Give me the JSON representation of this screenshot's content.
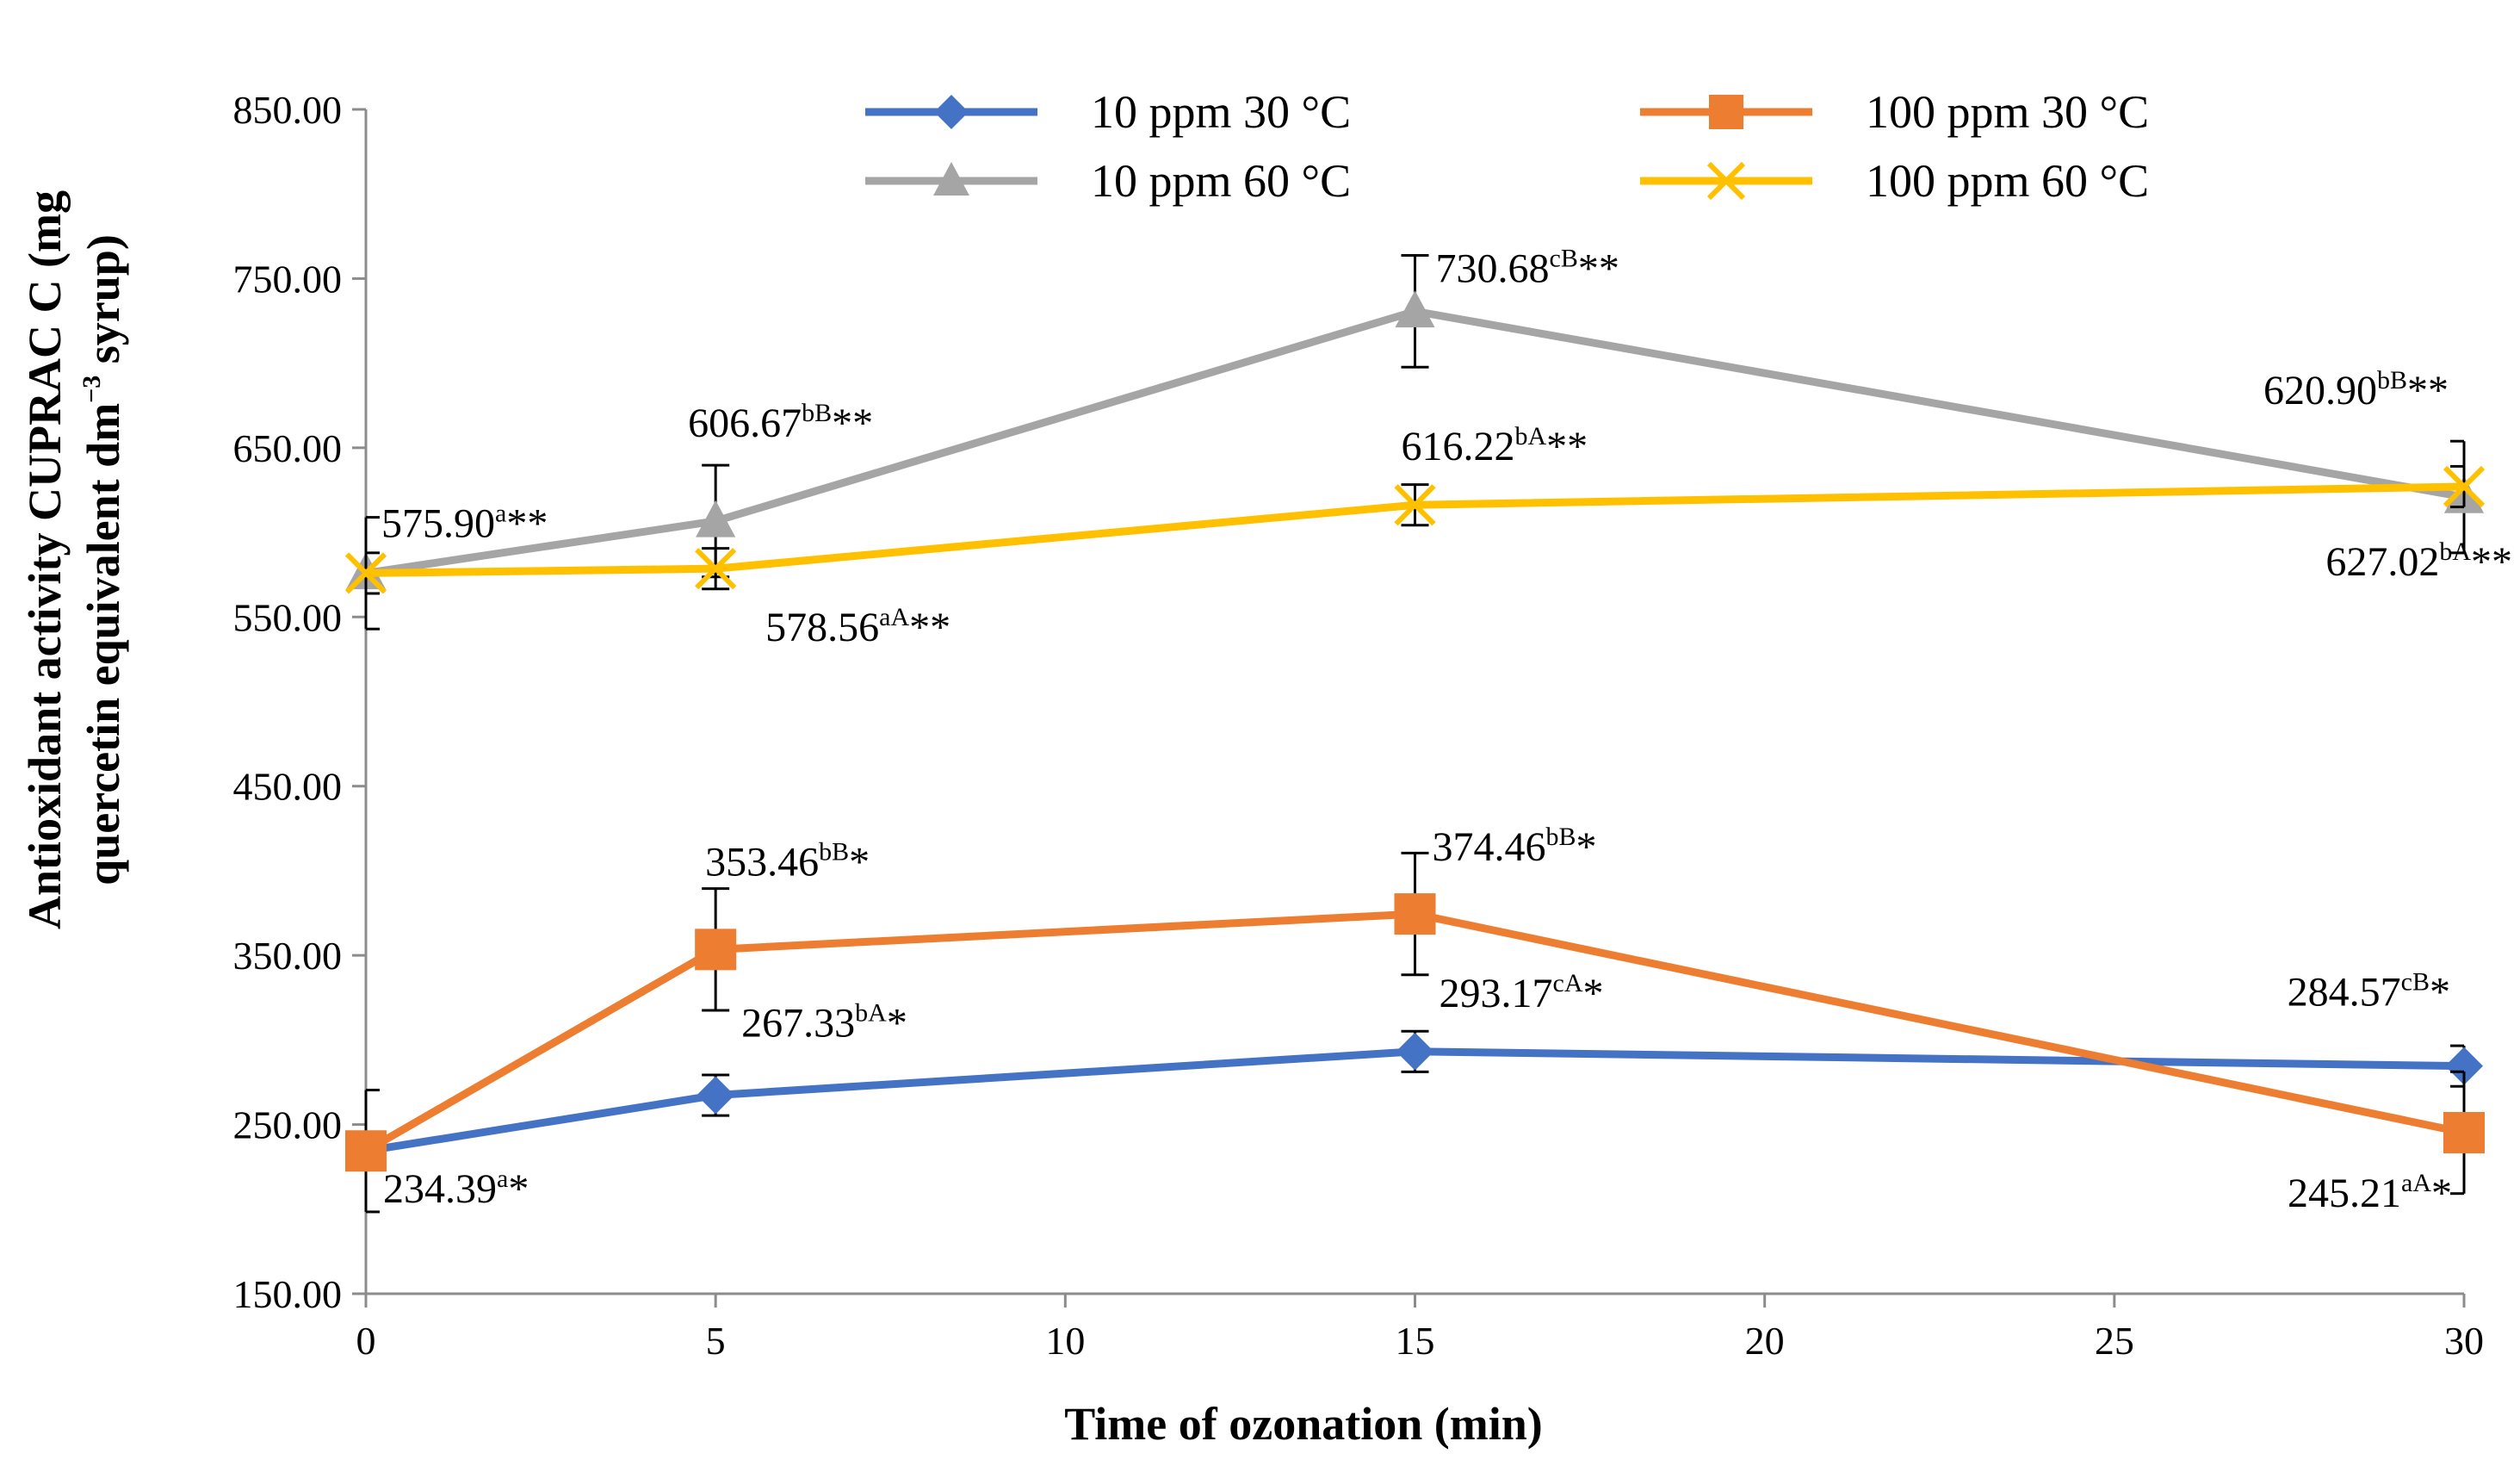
{
  "chart_data": {
    "type": "line",
    "title": "",
    "xlabel": "Time of ozonation (min)",
    "ylabel_line1": "Antioxidant activity CUPRAC C (mg",
    "ylabel_line2": "quercetin equivalent dm",
    "ylabel_sup": "−3",
    "ylabel_line2_tail": " syrup)",
    "xlim": [
      0,
      30
    ],
    "ylim": [
      150,
      850
    ],
    "x_ticks": [
      "0",
      "5",
      "10",
      "15",
      "20",
      "25",
      "30"
    ],
    "x_tick_values": [
      0,
      5,
      10,
      15,
      20,
      25,
      30
    ],
    "y_ticks": [
      "150.00",
      "250.00",
      "350.00",
      "450.00",
      "550.00",
      "650.00",
      "750.00",
      "850.00"
    ],
    "y_tick_values": [
      150,
      250,
      350,
      450,
      550,
      650,
      750,
      850
    ],
    "x": [
      0,
      5,
      15,
      30
    ],
    "legend_position": "top",
    "series": [
      {
        "name": "10 ppm 30 °C",
        "color": "#4472C4",
        "marker": "diamond",
        "values": [
          234.39,
          267.33,
          293.17,
          284.57
        ],
        "errors": [
          0,
          12,
          12,
          12
        ],
        "annotations": [
          {
            "value": "234.39",
            "sup": "a*"
          },
          {
            "value": "267.33",
            "sup": "bA*"
          },
          {
            "value": "293.17",
            "sup": "cA*"
          },
          {
            "value": "284.57",
            "sup": "cB*"
          }
        ]
      },
      {
        "name": "100 ppm 30 °C",
        "color": "#ED7D31",
        "marker": "square",
        "values": [
          234.39,
          353.46,
          374.46,
          245.21
        ],
        "errors": [
          36,
          36,
          36,
          36
        ],
        "annotations": [
          {
            "value": "",
            "sup": ""
          },
          {
            "value": "353.46",
            "sup": "bB*"
          },
          {
            "value": "374.46",
            "sup": "bB*"
          },
          {
            "value": "245.21",
            "sup": "aA*"
          }
        ]
      },
      {
        "name": "10 ppm 60 °C",
        "color": "#A5A5A5",
        "marker": "triangle",
        "values": [
          575.9,
          606.67,
          730.68,
          620.9
        ],
        "errors": [
          33,
          33,
          33,
          33
        ],
        "annotations": [
          {
            "value": "575.90",
            "sup": "a**"
          },
          {
            "value": "606.67",
            "sup": "bB**"
          },
          {
            "value": "730.68",
            "sup": "cB**"
          },
          {
            "value": "620.90",
            "sup": "bB**"
          }
        ]
      },
      {
        "name": "100 ppm 60 °C",
        "color": "#FFC000",
        "marker": "x",
        "values": [
          575.9,
          578.56,
          616.22,
          627.02
        ],
        "errors": [
          12,
          12,
          12,
          12
        ],
        "annotations": [
          {
            "value": "",
            "sup": ""
          },
          {
            "value": "578.56",
            "sup": "aA**"
          },
          {
            "value": "616.22",
            "sup": "bA**"
          },
          {
            "value": "627.02",
            "sup": "bA**"
          }
        ]
      }
    ]
  }
}
